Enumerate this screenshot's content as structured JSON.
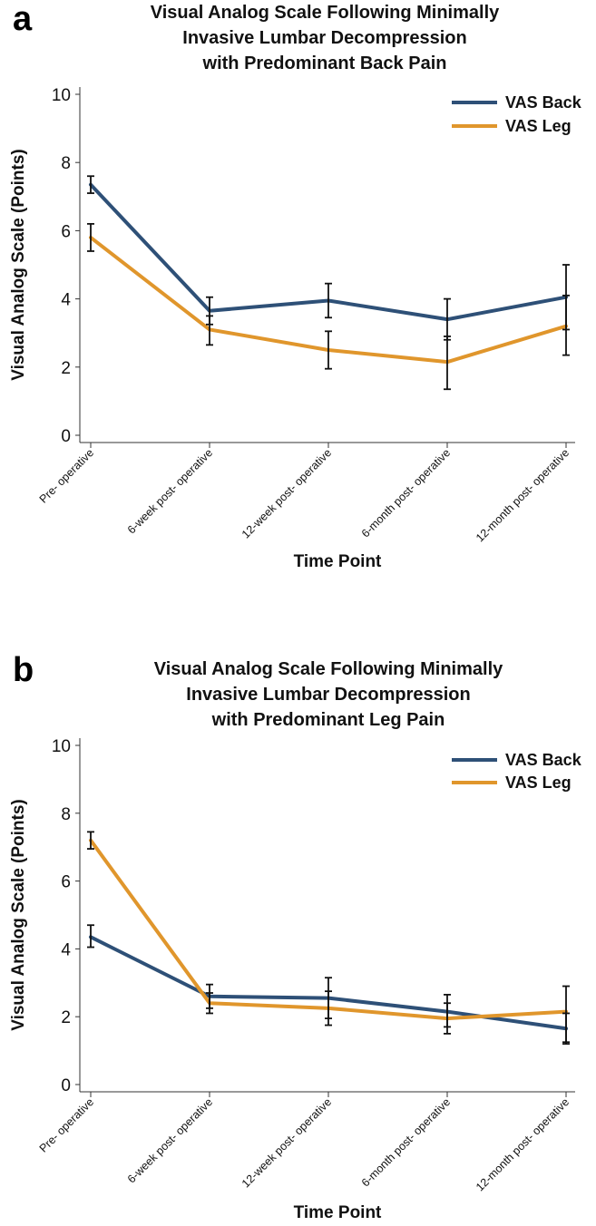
{
  "chart_data": [
    {
      "type": "line",
      "panel_label": "a",
      "title": [
        "Visual Analog Scale Following Minimally",
        "Invasive Lumbar Decompression",
        "with Predominant Back Pain"
      ],
      "xlabel": "Time Point",
      "ylabel": "Visual Analog Scale (Points)",
      "ylim": [
        0,
        10
      ],
      "yticks": [
        "0",
        "2",
        "4",
        "6",
        "8",
        "10"
      ],
      "categories": [
        "Pre- operative",
        "6-week post- operative",
        "12-week post- operative",
        "6-month post- operative",
        "12-month post- operative"
      ],
      "legend_position": "top-right",
      "series": [
        {
          "name": "VAS Back",
          "color": "#2e5077",
          "values": [
            7.35,
            3.65,
            3.95,
            3.4,
            4.05
          ],
          "error_low": [
            7.1,
            3.25,
            3.45,
            2.8,
            3.1
          ],
          "error_high": [
            7.6,
            4.05,
            4.45,
            4.0,
            5.0
          ]
        },
        {
          "name": "VAS Leg",
          "color": "#e0962c",
          "values": [
            5.8,
            3.1,
            2.5,
            2.15,
            3.2
          ],
          "error_low": [
            5.4,
            2.65,
            1.95,
            1.35,
            2.35
          ],
          "error_high": [
            6.2,
            3.5,
            3.05,
            2.9,
            4.1
          ]
        }
      ]
    },
    {
      "type": "line",
      "panel_label": "b",
      "title": [
        "Visual Analog Scale Following Minimally",
        "Invasive Lumbar Decompression",
        "with Predominant Leg Pain"
      ],
      "xlabel": "Time Point",
      "ylabel": "Visual Analog Scale (Points)",
      "ylim": [
        0,
        10
      ],
      "yticks": [
        "0",
        "2",
        "4",
        "6",
        "8",
        "10"
      ],
      "categories": [
        "Pre- operative",
        "6-week post- operative",
        "12-week post- operative",
        "6-month post- operative",
        "12-month post- operative"
      ],
      "legend_position": "top-right",
      "series": [
        {
          "name": "VAS Back",
          "color": "#2e5077",
          "values": [
            4.35,
            2.6,
            2.55,
            2.15,
            1.65
          ],
          "error_low": [
            4.05,
            2.25,
            1.95,
            1.7,
            1.25
          ],
          "error_high": [
            4.7,
            2.95,
            3.15,
            2.65,
            2.1
          ]
        },
        {
          "name": "VAS Leg",
          "color": "#e0962c",
          "values": [
            7.2,
            2.4,
            2.25,
            1.95,
            2.15
          ],
          "error_low": [
            6.95,
            2.1,
            1.75,
            1.5,
            1.2
          ],
          "error_high": [
            7.45,
            2.7,
            2.75,
            2.4,
            2.9
          ]
        }
      ]
    }
  ]
}
